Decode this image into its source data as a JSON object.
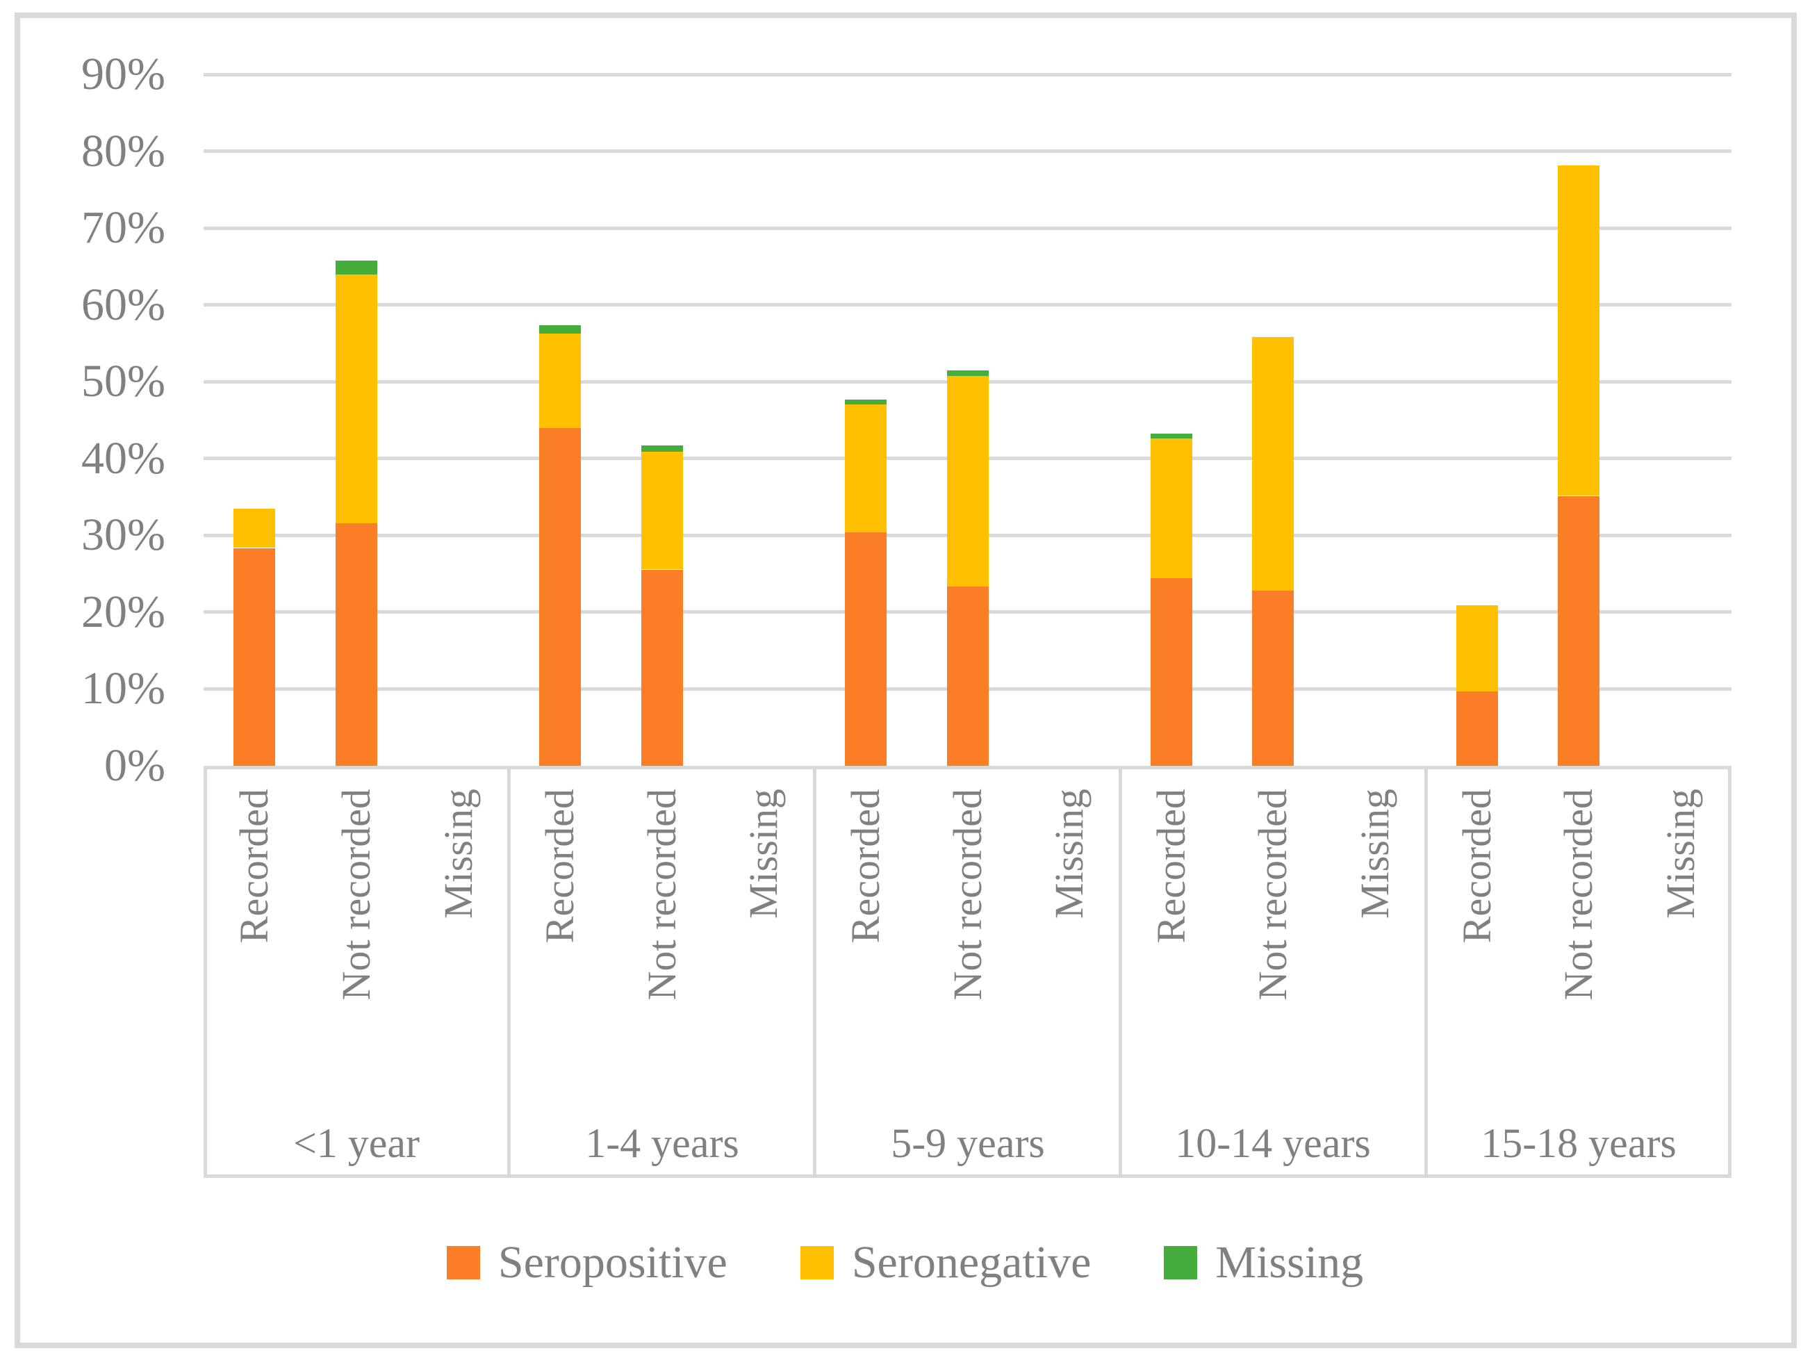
{
  "figure": {
    "background_color": "#ffffff",
    "border_color": "#d9d9d9",
    "gridline_color": "#d9d9d9",
    "text_color": "#808080"
  },
  "chart_data": {
    "type": "bar",
    "stacked": true,
    "title": "",
    "xlabel": "",
    "ylabel": "",
    "ylim": [
      0,
      90
    ],
    "ytick_step": 10,
    "grid": true,
    "legend_position": "bottom",
    "ytick_labels": [
      "0%",
      "10%",
      "20%",
      "30%",
      "40%",
      "50%",
      "60%",
      "70%",
      "80%",
      "90%"
    ],
    "groups": [
      "<1 year",
      "1-4 years",
      "5-9 years",
      "10-14 years",
      "15-18 years"
    ],
    "subcategories": [
      "Recorded",
      "Not recorded",
      "Missing"
    ],
    "series": [
      {
        "name": "Seropositive",
        "color": "#fb7d26",
        "values": [
          28.7,
          31.9,
          0,
          44.3,
          25.9,
          0,
          30.8,
          23.7,
          0,
          24.8,
          23.2,
          0,
          10.1,
          35.5,
          0
        ]
      },
      {
        "name": "Seronegative",
        "color": "#ffc000",
        "values": [
          5.1,
          32.4,
          0,
          12.3,
          15.4,
          0,
          16.6,
          27.4,
          0,
          18.2,
          33.0,
          0,
          11.2,
          43.0,
          0
        ]
      },
      {
        "name": "Missing",
        "color": "#45ad3c",
        "values": [
          0,
          1.8,
          0,
          1.1,
          0.8,
          0,
          0.6,
          0.7,
          0,
          0.6,
          0,
          0,
          0,
          0,
          0
        ]
      }
    ]
  }
}
